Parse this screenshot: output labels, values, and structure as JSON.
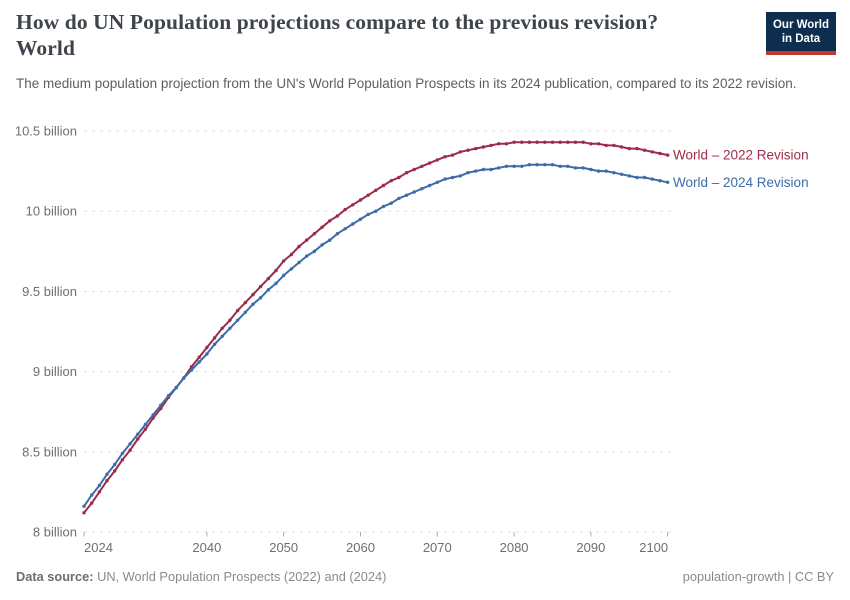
{
  "header": {
    "title_line1": "How do UN Population projections compare to the previous revision?",
    "title_line2": "World",
    "subtitle": "The medium population projection from the UN's World Population Prospects in its 2024 publication, compared to its 2022 revision.",
    "logo": {
      "line1": "Our World",
      "line2": "in Data",
      "bg_color": "#0d2e4f",
      "bar_color": "#c2382f"
    }
  },
  "footer": {
    "source_label": "Data source:",
    "source_text": " UN, World Population Prospects (2022) and (2024)",
    "right_text": "population-growth | CC BY"
  },
  "colors": {
    "revision_2022": "#9c2c47",
    "revision_2024": "#3d6ca8",
    "gridline": "#e0e0e0",
    "axis_text": "#6f6f6f"
  },
  "chart_data": {
    "type": "line",
    "title": "How do UN Population projections compare to the previous revision? World",
    "xlabel": "",
    "ylabel": "",
    "xlim": [
      2024,
      2100
    ],
    "ylim": [
      8,
      10.6
    ],
    "grid": "horizontal-dashed",
    "legend_position": "labels-at-line-ends",
    "x_ticks": [
      2024,
      2040,
      2050,
      2060,
      2070,
      2080,
      2090,
      2100
    ],
    "y_ticks": [
      {
        "value": 8,
        "label": "8 billion"
      },
      {
        "value": 8.5,
        "label": "8.5 billion"
      },
      {
        "value": 9,
        "label": "9 billion"
      },
      {
        "value": 9.5,
        "label": "9.5 billion"
      },
      {
        "value": 10,
        "label": "10 billion"
      },
      {
        "value": 10.5,
        "label": "10.5 billion"
      }
    ],
    "unit": "billion people",
    "years": [
      2024,
      2025,
      2026,
      2027,
      2028,
      2029,
      2030,
      2031,
      2032,
      2033,
      2034,
      2035,
      2036,
      2037,
      2038,
      2039,
      2040,
      2041,
      2042,
      2043,
      2044,
      2045,
      2046,
      2047,
      2048,
      2049,
      2050,
      2051,
      2052,
      2053,
      2054,
      2055,
      2056,
      2057,
      2058,
      2059,
      2060,
      2061,
      2062,
      2063,
      2064,
      2065,
      2066,
      2067,
      2068,
      2069,
      2070,
      2071,
      2072,
      2073,
      2074,
      2075,
      2076,
      2077,
      2078,
      2079,
      2080,
      2081,
      2082,
      2083,
      2084,
      2085,
      2086,
      2087,
      2088,
      2089,
      2090,
      2091,
      2092,
      2093,
      2094,
      2095,
      2096,
      2097,
      2098,
      2099,
      2100
    ],
    "series": [
      {
        "id": "world-2022-revision",
        "name": "World – 2022 Revision",
        "color": "#9c2c47",
        "values": [
          8.12,
          8.18,
          8.25,
          8.32,
          8.38,
          8.45,
          8.51,
          8.58,
          8.64,
          8.71,
          8.77,
          8.84,
          8.9,
          8.96,
          9.03,
          9.09,
          9.15,
          9.21,
          9.27,
          9.32,
          9.38,
          9.43,
          9.48,
          9.53,
          9.58,
          9.63,
          9.69,
          9.73,
          9.78,
          9.82,
          9.86,
          9.9,
          9.94,
          9.97,
          10.01,
          10.04,
          10.07,
          10.1,
          10.13,
          10.16,
          10.19,
          10.21,
          10.24,
          10.26,
          10.28,
          10.3,
          10.32,
          10.34,
          10.35,
          10.37,
          10.38,
          10.39,
          10.4,
          10.41,
          10.42,
          10.42,
          10.43,
          10.43,
          10.43,
          10.43,
          10.43,
          10.43,
          10.43,
          10.43,
          10.43,
          10.43,
          10.42,
          10.42,
          10.41,
          10.41,
          10.4,
          10.39,
          10.39,
          10.38,
          10.37,
          10.36,
          10.35
        ]
      },
      {
        "id": "world-2024-revision",
        "name": "World – 2024 Revision",
        "color": "#3d6ca8",
        "values": [
          8.16,
          8.23,
          8.29,
          8.36,
          8.42,
          8.49,
          8.55,
          8.61,
          8.67,
          8.73,
          8.79,
          8.85,
          8.9,
          8.96,
          9.01,
          9.06,
          9.11,
          9.17,
          9.22,
          9.27,
          9.32,
          9.37,
          9.42,
          9.46,
          9.51,
          9.55,
          9.6,
          9.64,
          9.68,
          9.72,
          9.75,
          9.79,
          9.82,
          9.86,
          9.89,
          9.92,
          9.95,
          9.98,
          10.0,
          10.03,
          10.05,
          10.08,
          10.1,
          10.12,
          10.14,
          10.16,
          10.18,
          10.2,
          10.21,
          10.22,
          10.24,
          10.25,
          10.26,
          10.26,
          10.27,
          10.28,
          10.28,
          10.28,
          10.29,
          10.29,
          10.29,
          10.29,
          10.28,
          10.28,
          10.27,
          10.27,
          10.26,
          10.25,
          10.25,
          10.24,
          10.23,
          10.22,
          10.21,
          10.21,
          10.2,
          10.19,
          10.18
        ]
      }
    ]
  }
}
